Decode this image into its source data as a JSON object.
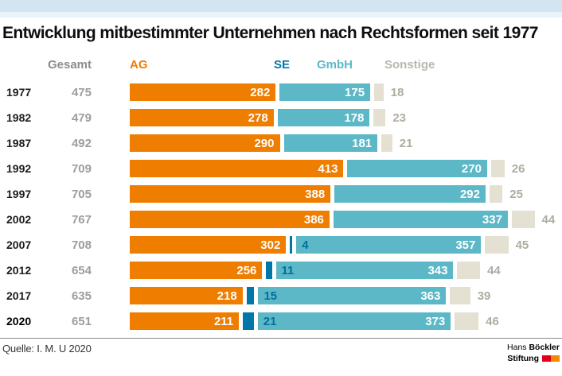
{
  "title": "Entwicklung mitbestimmter Unternehmen nach Rechtsformen seit 1977",
  "columns": {
    "gesamt": "Gesamt",
    "ag": "AG",
    "se": "SE",
    "gmbh": "GmbH",
    "sonstige": "Sonstige"
  },
  "colors": {
    "ag": "#ee7d00",
    "se": "#0077a6",
    "gmbh": "#5cb8c7",
    "sonstige_bar": "#e4e1d3",
    "gesamt_text": "#9d9d9d",
    "sonstige_text": "#aeaca1",
    "header_band": "#d3e5f0",
    "logo_red": "#e2001a",
    "logo_orange": "#f18a00"
  },
  "chart_data": {
    "type": "bar",
    "orientation": "horizontal",
    "stacked": true,
    "value_labels_shown": true,
    "axis_shown": false,
    "categories": [
      "1977",
      "1982",
      "1987",
      "1992",
      "1997",
      "2002",
      "2007",
      "2012",
      "2017",
      "2020"
    ],
    "emphasized_category": "2020",
    "totals": [
      475,
      479,
      492,
      709,
      705,
      767,
      708,
      654,
      635,
      651
    ],
    "series": [
      {
        "name": "AG",
        "values": [
          282,
          278,
          290,
          413,
          388,
          386,
          302,
          256,
          218,
          211
        ]
      },
      {
        "name": "SE",
        "values": [
          0,
          0,
          0,
          0,
          0,
          0,
          4,
          11,
          15,
          21
        ]
      },
      {
        "name": "GmbH",
        "values": [
          175,
          178,
          181,
          270,
          292,
          337,
          357,
          343,
          363,
          373
        ]
      },
      {
        "name": "Sonstige",
        "values": [
          18,
          23,
          21,
          26,
          25,
          44,
          45,
          44,
          39,
          46
        ]
      }
    ]
  },
  "footer": {
    "source": "Quelle: I. M. U 2020",
    "logo_line1_regular": "Hans",
    "logo_line1_bold": "Böckler",
    "logo_line2_bold": "Stiftung"
  }
}
